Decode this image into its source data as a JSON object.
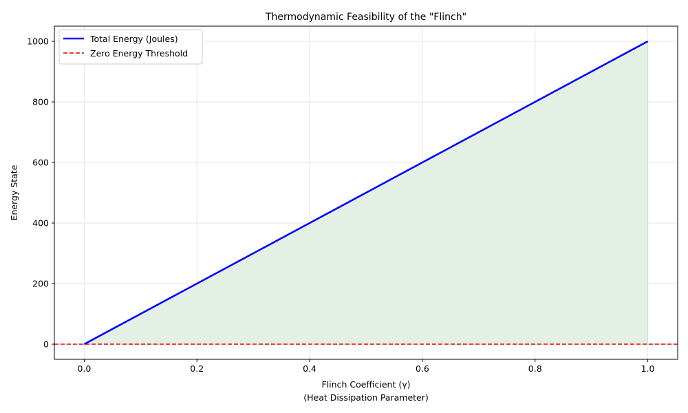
{
  "chart_data": {
    "type": "line",
    "title": "Thermodynamic Feasibility of the \"Flinch\"",
    "xlabel": "Flinch Coefficient (γ)",
    "xlabel_line2": "(Heat Dissipation Parameter)",
    "ylabel": "Energy State",
    "xlim": [
      -0.053,
      1.053
    ],
    "ylim": [
      -50,
      1050
    ],
    "x_ticks": [
      0.0,
      0.2,
      0.4,
      0.6,
      0.8,
      1.0
    ],
    "x_tick_labels": [
      "0.0",
      "0.2",
      "0.4",
      "0.6",
      "0.8",
      "1.0"
    ],
    "y_ticks": [
      0,
      200,
      400,
      600,
      800,
      1000
    ],
    "y_tick_labels": [
      "0",
      "200",
      "400",
      "600",
      "800",
      "1000"
    ],
    "grid": true,
    "legend_position": "top-left",
    "series": [
      {
        "name": "Total Energy (Joules)",
        "color": "#0000ff",
        "style": "solid",
        "fill": true,
        "fill_color": "#e4f0e4",
        "x": [
          0.0,
          0.1,
          0.2,
          0.3,
          0.4,
          0.5,
          0.6,
          0.7,
          0.8,
          0.9,
          1.0
        ],
        "y": [
          0,
          100,
          200,
          300,
          400,
          500,
          600,
          700,
          800,
          900,
          1000
        ]
      }
    ],
    "threshold": {
      "name": "Zero Energy Threshold",
      "y": 0,
      "color": "#dd0000",
      "style": "dashed"
    }
  }
}
